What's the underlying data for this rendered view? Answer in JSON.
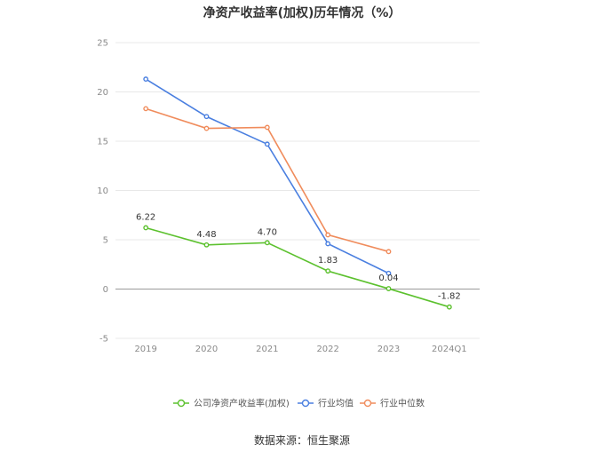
{
  "chart_data": {
    "type": "line",
    "title": "净资产收益率(加权)历年情况（%）",
    "categories": [
      "2019",
      "2020",
      "2021",
      "2022",
      "2023",
      "2024Q1"
    ],
    "ylim": [
      -5,
      25
    ],
    "yticks": [
      -5,
      0,
      5,
      10,
      15,
      20,
      25
    ],
    "grid": true,
    "legend_position": "bottom",
    "series": [
      {
        "name": "公司净资产收益率(加权)",
        "color": "#5cc12e",
        "values": [
          6.22,
          4.48,
          4.7,
          1.83,
          0.04,
          -1.82
        ],
        "labels": [
          "6.22",
          "4.48",
          "4.70",
          "1.83",
          "0.04",
          "-1.82"
        ]
      },
      {
        "name": "行业均值",
        "color": "#4a7fe0",
        "values": [
          21.3,
          17.5,
          14.7,
          4.6,
          1.6,
          null
        ]
      },
      {
        "name": "行业中位数",
        "color": "#f08c5c",
        "values": [
          18.3,
          16.3,
          16.4,
          5.5,
          3.8,
          null
        ]
      }
    ]
  },
  "source_text": "数据来源：恒生聚源"
}
